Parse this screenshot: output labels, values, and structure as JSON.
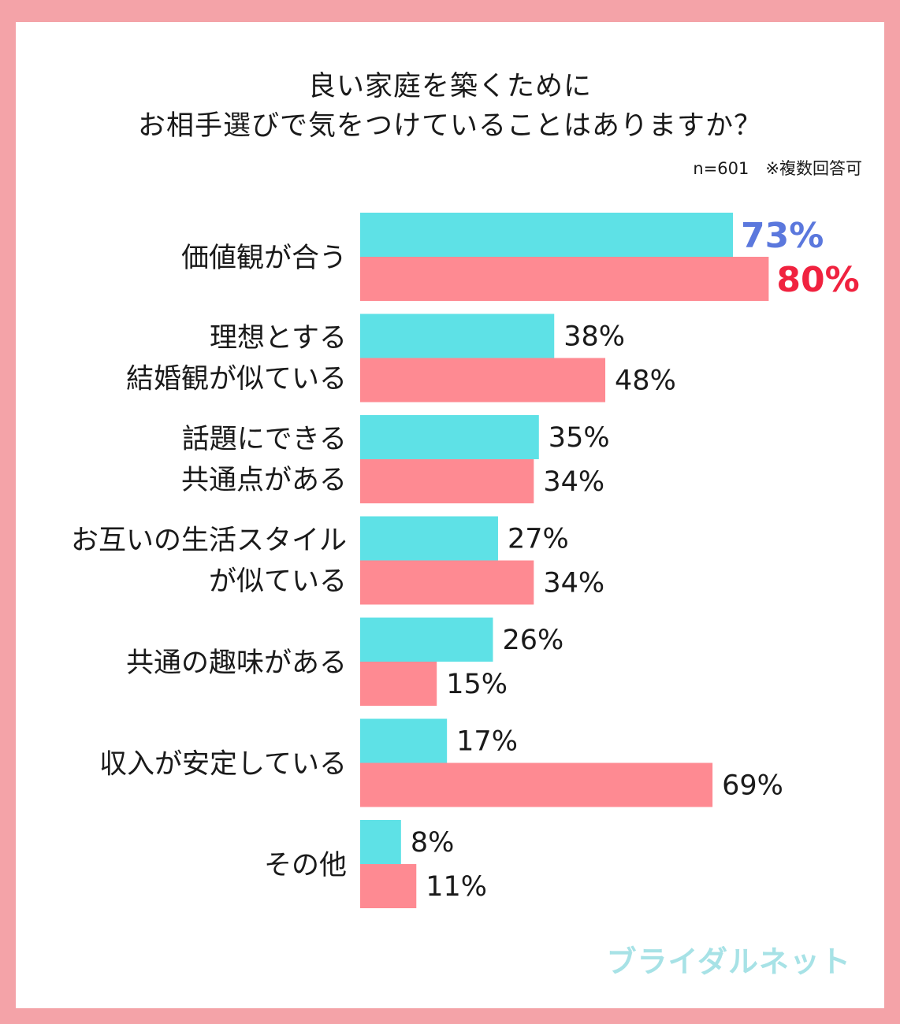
{
  "header": {
    "title_line1": "良い家庭を築くために",
    "title_line2": "お相手選びで気をつけていることはありますか？",
    "note": "n=601　※複数回答可"
  },
  "brand": {
    "logo_text": "ブライダルネット"
  },
  "colors": {
    "background_border": "#f4a3a8",
    "series1": "#5ee1e6",
    "series2": "#fe8a92",
    "highlight1": "#5b78dd",
    "highlight2": "#f0223f",
    "logo": "#a7e2e6"
  },
  "chart_data": {
    "type": "bar",
    "orientation": "horizontal",
    "categories": [
      [
        "価値観が合う"
      ],
      [
        "理想とする",
        "結婚観が似ている"
      ],
      [
        "話題にできる",
        "共通点がある"
      ],
      [
        "お互いの生活スタイル",
        "が似ている"
      ],
      [
        "共通の趣味がある"
      ],
      [
        "収入が安定している"
      ],
      [
        "その他"
      ]
    ],
    "series": [
      {
        "values": [
          73,
          38,
          35,
          27,
          26,
          17,
          8
        ],
        "labels": [
          "73%",
          "38%",
          "35%",
          "27%",
          "26%",
          "17%",
          "8%"
        ]
      },
      {
        "values": [
          80,
          48,
          34,
          34,
          15,
          69,
          11
        ],
        "labels": [
          "80%",
          "48%",
          "34%",
          "34%",
          "15%",
          "69%",
          "11%"
        ]
      }
    ],
    "xlim": [
      0,
      80
    ],
    "grid": false,
    "legend": "none"
  }
}
